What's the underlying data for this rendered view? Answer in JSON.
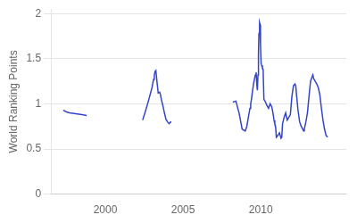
{
  "chart_data": {
    "type": "line",
    "ylabel": "World Ranking Points",
    "color": "#3344cc",
    "xlim": [
      1996.5,
      2015.5
    ],
    "xticks": [
      2000,
      2005,
      2010
    ],
    "ylim": [
      0,
      2.05
    ],
    "yticks": [
      0,
      0.5,
      1.0,
      1.5,
      2.0
    ],
    "grid": "y",
    "series": [
      {
        "x": [
          1997.3,
          1997.5,
          1997.7,
          1998.5,
          1998.8
        ],
        "values": [
          0.93,
          0.91,
          0.9,
          0.88,
          0.87
        ]
      },
      {
        "x": [
          2002.4,
          2002.6,
          2002.8,
          2003.0,
          2003.1,
          2003.15,
          2003.2,
          2003.25,
          2003.3,
          2003.4,
          2003.5,
          2003.55,
          2003.6,
          2003.7,
          2003.8,
          2003.9,
          2004.0,
          2004.1,
          2004.15,
          2004.2,
          2004.25
        ],
        "values": [
          0.82,
          0.93,
          1.05,
          1.18,
          1.27,
          1.32,
          1.36,
          1.37,
          1.28,
          1.12,
          1.13,
          1.1,
          1.05,
          0.98,
          0.9,
          0.83,
          0.8,
          0.78,
          0.79,
          0.8,
          0.8
        ]
      },
      {
        "x": [
          2008.2,
          2008.4,
          2008.6,
          2008.8,
          2009.0,
          2009.1,
          2009.2,
          2009.3,
          2009.35,
          2009.4,
          2009.45,
          2009.5,
          2009.55,
          2009.6,
          2009.65,
          2009.7,
          2009.75,
          2009.78,
          2009.82,
          2009.85,
          2009.88,
          2009.92,
          2009.95,
          2009.98,
          2010.02,
          2010.05,
          2010.1,
          2010.15,
          2010.2,
          2010.3,
          2010.4,
          2010.5,
          2010.6,
          2010.7,
          2010.75,
          2010.8,
          2010.85,
          2010.9,
          2010.95,
          2011.0,
          2011.1,
          2011.2,
          2011.3,
          2011.35,
          2011.4,
          2011.5,
          2011.6,
          2011.7,
          2011.8,
          2011.9,
          2012.0,
          2012.1,
          2012.2,
          2012.25,
          2012.3,
          2012.4,
          2012.5,
          2012.6,
          2012.7,
          2012.75,
          2012.8,
          2012.9,
          2013.0,
          2013.1,
          2013.2,
          2013.3,
          2013.35,
          2013.4,
          2013.5,
          2013.6,
          2013.7,
          2013.8,
          2013.9,
          2014.0,
          2014.1,
          2014.2,
          2014.3
        ],
        "values": [
          1.02,
          1.03,
          0.9,
          0.72,
          0.7,
          0.75,
          0.85,
          0.95,
          1.0,
          1.05,
          1.12,
          1.18,
          1.24,
          1.28,
          1.32,
          1.35,
          1.2,
          1.15,
          1.32,
          1.55,
          1.78,
          1.9,
          1.88,
          1.65,
          1.45,
          1.43,
          1.4,
          1.38,
          1.05,
          1.02,
          0.98,
          0.95,
          1.0,
          0.97,
          0.93,
          0.88,
          0.82,
          0.78,
          0.75,
          0.63,
          0.65,
          0.68,
          0.62,
          0.63,
          0.78,
          0.85,
          0.9,
          0.82,
          0.85,
          0.88,
          1.08,
          1.2,
          1.22,
          1.2,
          1.1,
          0.92,
          0.8,
          0.75,
          0.72,
          0.7,
          0.72,
          0.8,
          0.9,
          1.08,
          1.25,
          1.3,
          1.32,
          1.28,
          1.25,
          1.22,
          1.18,
          1.1,
          0.95,
          0.82,
          0.72,
          0.65,
          0.63
        ]
      }
    ]
  }
}
